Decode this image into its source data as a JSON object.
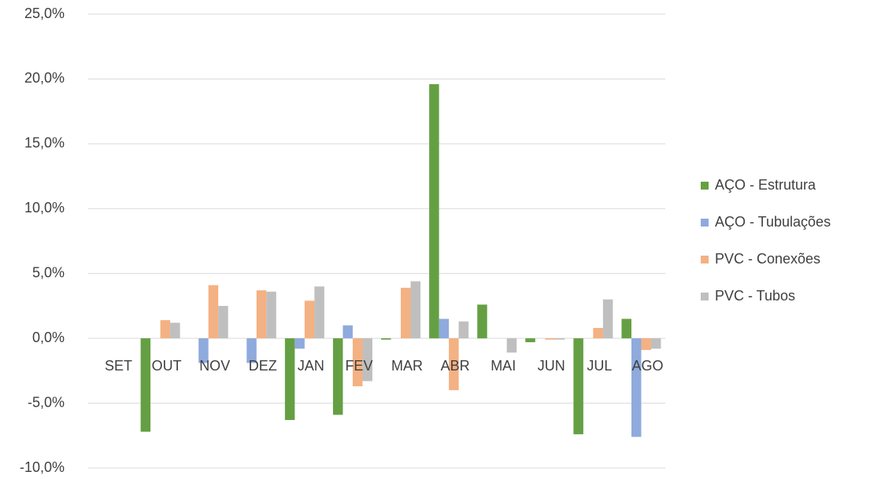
{
  "chart_data": {
    "type": "bar",
    "categories": [
      "SET",
      "OUT",
      "NOV",
      "DEZ",
      "JAN",
      "FEV",
      "MAR",
      "ABR",
      "MAI",
      "JUN",
      "JUL",
      "AGO"
    ],
    "series": [
      {
        "name": "AÇO - Estrutura",
        "color": "#64a043",
        "values": [
          0,
          -7.2,
          0,
          0,
          -6.3,
          -5.9,
          -0.1,
          19.6,
          2.6,
          -0.3,
          -7.4,
          1.5
        ]
      },
      {
        "name": "AÇO - Tubulações",
        "color": "#8faadc",
        "values": [
          0,
          0,
          -1.9,
          -1.9,
          -0.8,
          1.0,
          0,
          1.5,
          0,
          0,
          0,
          -7.6
        ]
      },
      {
        "name": "PVC - Conexões",
        "color": "#f4b183",
        "values": [
          0,
          1.4,
          4.1,
          3.7,
          2.9,
          -3.7,
          3.9,
          -4.0,
          0,
          -0.1,
          0.8,
          -0.9
        ]
      },
      {
        "name": "PVC - Tubos",
        "color": "#bfbfbf",
        "values": [
          0,
          1.2,
          2.5,
          3.6,
          4.0,
          -3.3,
          4.4,
          1.3,
          -1.1,
          -0.1,
          3.0,
          -0.8
        ]
      }
    ],
    "ylim": [
      -10,
      25
    ],
    "yticks": [
      {
        "value": -10,
        "label": "-10,0%"
      },
      {
        "value": -5,
        "label": "-5,0%"
      },
      {
        "value": 0,
        "label": "0,0%"
      },
      {
        "value": 5,
        "label": "5,0%"
      },
      {
        "value": 10,
        "label": "10,0%"
      },
      {
        "value": 15,
        "label": "15,0%"
      },
      {
        "value": 20,
        "label": "20,0%"
      },
      {
        "value": 25,
        "label": "25,0%"
      }
    ],
    "grid": true,
    "legend": "right"
  }
}
